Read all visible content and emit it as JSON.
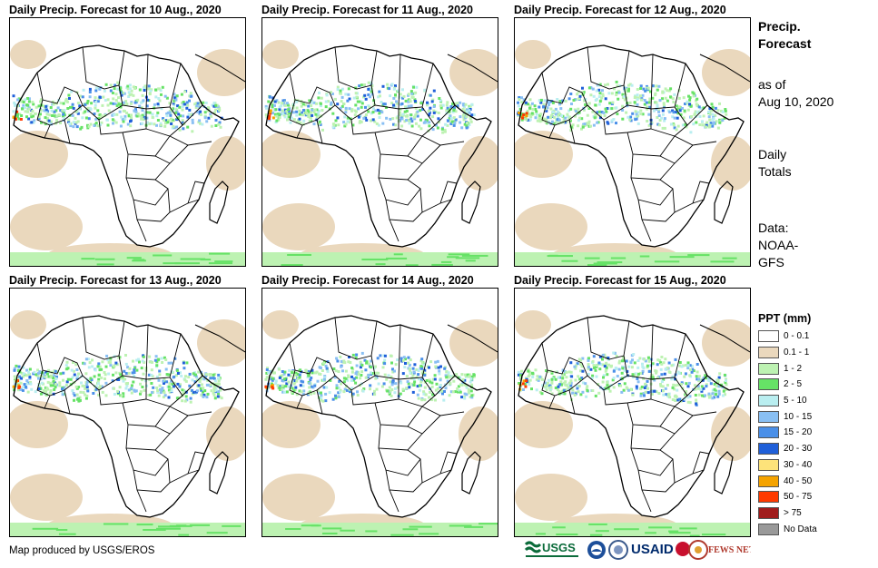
{
  "panels": [
    {
      "title": "Daily Precip. Forecast for 10 Aug., 2020",
      "day": 10
    },
    {
      "title": "Daily Precip. Forecast for 11 Aug., 2020",
      "day": 11
    },
    {
      "title": "Daily Precip. Forecast for 12 Aug., 2020",
      "day": 12
    },
    {
      "title": "Daily Precip. Forecast for 13 Aug., 2020",
      "day": 13
    },
    {
      "title": "Daily Precip. Forecast for 14 Aug., 2020",
      "day": 14
    },
    {
      "title": "Daily Precip. Forecast for 15 Aug., 2020",
      "day": 15
    }
  ],
  "side": {
    "title_line1": "Precip.",
    "title_line2": "Forecast",
    "asof_line1": "as of",
    "asof_line2": "Aug 10, 2020",
    "totals_line1": "Daily",
    "totals_line2": "Totals",
    "data_line1": "Data:",
    "data_line2": "NOAA-",
    "data_line3": "GFS"
  },
  "legend": {
    "title": "PPT (mm)",
    "items": [
      {
        "label": "0 - 0.1",
        "color": "#ffffff"
      },
      {
        "label": "0.1 - 1",
        "color": "#ead8bd"
      },
      {
        "label": "1 - 2",
        "color": "#bdf2b2"
      },
      {
        "label": "2 - 5",
        "color": "#66e266"
      },
      {
        "label": "5 - 10",
        "color": "#b9eef0"
      },
      {
        "label": "10 - 15",
        "color": "#89bff3"
      },
      {
        "label": "15 - 20",
        "color": "#4a8fe8"
      },
      {
        "label": "20 - 30",
        "color": "#1f5fd9"
      },
      {
        "label": "30 - 40",
        "color": "#fde37a"
      },
      {
        "label": "40 - 50",
        "color": "#f5a300"
      },
      {
        "label": "50 - 75",
        "color": "#ff3a00"
      },
      {
        "label": "> 75",
        "color": "#a01c1c"
      },
      {
        "label": "No Data",
        "color": "#999999"
      }
    ]
  },
  "footer": "Map produced by USGS/EROS",
  "logos": {
    "usgs": "USGS",
    "usaid": "USAID",
    "fewsnet": "FEWS NET"
  }
}
